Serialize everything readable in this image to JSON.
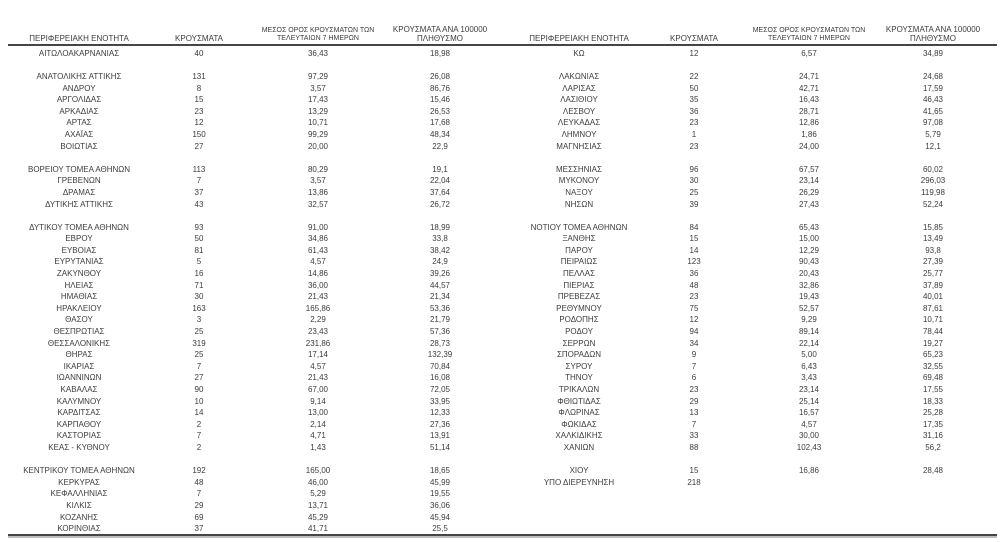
{
  "page": {
    "background": "#ffffff",
    "text_color": "#3d3d3d",
    "rule_color": "#454545",
    "rule_shadow_color": "#bdbdbd"
  },
  "headers": {
    "region": "ΠΕΡΙΦΕΡΕΙΑΚΗ ΕΝΟΤΗΤΑ",
    "cases": "ΚΡΟΥΣΜΑΤΑ",
    "avg7_line1": "ΜΕΣΟΣ ΟΡΟΣ ΚΡΟΥΣΜΑΤΩΝ ΤΩΝ",
    "avg7_line2": "ΤΕΛΕΥΤΑΙΩΝ 7 ΗΜΕΡΩΝ",
    "per100k_line1": "ΚΡΟΥΣΜΑΤΑ ΑΝΑ 100000",
    "per100k_line2": "ΠΛΗΘΥΣΜΟ"
  },
  "columns": [
    "region",
    "cases",
    "avg7",
    "per100k"
  ],
  "left_table": {
    "groups": [
      [
        [
          "ΑΙΤΩΛΟΑΚΑΡΝΑΝΙΑΣ",
          "40",
          "36,43",
          "18,98"
        ]
      ],
      [
        [
          "ΑΝΑΤΟΛΙΚΗΣ ΑΤΤΙΚΗΣ",
          "131",
          "97,29",
          "26,08"
        ],
        [
          "ΑΝΔΡΟΥ",
          "8",
          "3,57",
          "86,76"
        ],
        [
          "ΑΡΓΟΛΙΔΑΣ",
          "15",
          "17,43",
          "15,46"
        ],
        [
          "ΑΡΚΑΔΙΑΣ",
          "23",
          "13,29",
          "26,53"
        ],
        [
          "ΑΡΤΑΣ",
          "12",
          "10,71",
          "17,68"
        ],
        [
          "ΑΧΑΪΑΣ",
          "150",
          "99,29",
          "48,34"
        ],
        [
          "ΒΟΙΩΤΙΑΣ",
          "27",
          "20,00",
          "22,9"
        ]
      ],
      [
        [
          "ΒΟΡΕΙΟΥ ΤΟΜΕΑ ΑΘΗΝΩΝ",
          "113",
          "80,29",
          "19,1"
        ],
        [
          "ΓΡΕΒΕΝΩΝ",
          "7",
          "3,57",
          "22,04"
        ],
        [
          "ΔΡΑΜΑΣ",
          "37",
          "13,86",
          "37,64"
        ],
        [
          "ΔΥΤΙΚΗΣ ΑΤΤΙΚΗΣ",
          "43",
          "32,57",
          "26,72"
        ]
      ],
      [
        [
          "ΔΥΤΙΚΟΥ ΤΟΜΕΑ ΑΘΗΝΩΝ",
          "93",
          "91,00",
          "18,99"
        ],
        [
          "ΕΒΡΟΥ",
          "50",
          "34,86",
          "33,8"
        ],
        [
          "ΕΥΒΟΙΑΣ",
          "81",
          "61,43",
          "38,42"
        ],
        [
          "ΕΥΡΥΤΑΝΙΑΣ",
          "5",
          "4,57",
          "24,9"
        ],
        [
          "ΖΑΚΥΝΘΟΥ",
          "16",
          "14,86",
          "39,26"
        ],
        [
          "ΗΛΕΙΑΣ",
          "71",
          "36,00",
          "44,57"
        ],
        [
          "ΗΜΑΘΙΑΣ",
          "30",
          "21,43",
          "21,34"
        ],
        [
          "ΗΡΑΚΛΕΙΟΥ",
          "163",
          "165,86",
          "53,36"
        ],
        [
          "ΘΑΣΟΥ",
          "3",
          "2,29",
          "21,79"
        ],
        [
          "ΘΕΣΠΡΩΤΙΑΣ",
          "25",
          "23,43",
          "57,36"
        ],
        [
          "ΘΕΣΣΑΛΟΝΙΚΗΣ",
          "319",
          "231,86",
          "28,73"
        ],
        [
          "ΘΗΡΑΣ",
          "25",
          "17,14",
          "132,39"
        ],
        [
          "ΙΚΑΡΙΑΣ",
          "7",
          "4,57",
          "70,84"
        ],
        [
          "ΙΩΑΝΝΙΝΩΝ",
          "27",
          "21,43",
          "16,08"
        ],
        [
          "ΚΑΒΑΛΑΣ",
          "90",
          "67,00",
          "72,05"
        ],
        [
          "ΚΑΛΥΜΝΟΥ",
          "10",
          "9,14",
          "33,95"
        ],
        [
          "ΚΑΡΔΙΤΣΑΣ",
          "14",
          "13,00",
          "12,33"
        ],
        [
          "ΚΑΡΠΑΘΟΥ",
          "2",
          "2,14",
          "27,36"
        ],
        [
          "ΚΑΣΤΟΡΙΑΣ",
          "7",
          "4,71",
          "13,91"
        ],
        [
          "ΚΕΑΣ - ΚΥΘΝΟΥ",
          "2",
          "1,43",
          "51,14"
        ]
      ],
      [
        [
          "ΚΕΝΤΡΙΚΟΥ ΤΟΜΕΑ ΑΘΗΝΩΝ",
          "192",
          "165,00",
          "18,65"
        ],
        [
          "ΚΕΡΚΥΡΑΣ",
          "48",
          "46,00",
          "45,99"
        ],
        [
          "ΚΕΦΑΛΛΗΝΙΑΣ",
          "7",
          "5,29",
          "19,55"
        ],
        [
          "ΚΙΛΚΙΣ",
          "29",
          "13,71",
          "36,06"
        ],
        [
          "ΚΟΖΑΝΗΣ",
          "69",
          "45,29",
          "45,94"
        ],
        [
          "ΚΟΡΙΝΘΙΑΣ",
          "37",
          "41,71",
          "25,5"
        ]
      ]
    ]
  },
  "right_table": {
    "groups": [
      [
        [
          "ΚΩ",
          "12",
          "6,57",
          "34,89"
        ]
      ],
      [
        [
          "ΛΑΚΩΝΙΑΣ",
          "22",
          "24,71",
          "24,68"
        ],
        [
          "ΛΑΡΙΣΑΣ",
          "50",
          "42,71",
          "17,59"
        ],
        [
          "ΛΑΣΙΘΙΟΥ",
          "35",
          "16,43",
          "46,43"
        ],
        [
          "ΛΕΣΒΟΥ",
          "36",
          "28,71",
          "41,65"
        ],
        [
          "ΛΕΥΚΑΔΑΣ",
          "23",
          "12,86",
          "97,08"
        ],
        [
          "ΛΗΜΝΟΥ",
          "1",
          "1,86",
          "5,79"
        ],
        [
          "ΜΑΓΝΗΣΙΑΣ",
          "23",
          "24,00",
          "12,1"
        ]
      ],
      [
        [
          "ΜΕΣΣΗΝΙΑΣ",
          "96",
          "67,57",
          "60,02"
        ],
        [
          "ΜΥΚΟΝΟΥ",
          "30",
          "23,14",
          "296,03"
        ],
        [
          "ΝΑΞΟΥ",
          "25",
          "26,29",
          "119,98"
        ],
        [
          "ΝΗΣΩΝ",
          "39",
          "27,43",
          "52,24"
        ]
      ],
      [
        [
          "ΝΟΤΙΟΥ ΤΟΜΕΑ ΑΘΗΝΩΝ",
          "84",
          "65,43",
          "15,85"
        ],
        [
          "ΞΑΝΘΗΣ",
          "15",
          "15,00",
          "13,49"
        ],
        [
          "ΠΑΡΟΥ",
          "14",
          "12,29",
          "93,8"
        ],
        [
          "ΠΕΙΡΑΙΩΣ",
          "123",
          "90,43",
          "27,39"
        ],
        [
          "ΠΕΛΛΑΣ",
          "36",
          "20,43",
          "25,77"
        ],
        [
          "ΠΙΕΡΙΑΣ",
          "48",
          "32,86",
          "37,89"
        ],
        [
          "ΠΡΕΒΕΖΑΣ",
          "23",
          "19,43",
          "40,01"
        ],
        [
          "ΡΕΘΥΜΝΟΥ",
          "75",
          "52,57",
          "87,61"
        ],
        [
          "ΡΟΔΟΠΗΣ",
          "12",
          "9,29",
          "10,71"
        ],
        [
          "ΡΟΔΟΥ",
          "94",
          "89,14",
          "78,44"
        ],
        [
          "ΣΕΡΡΩΝ",
          "34",
          "22,14",
          "19,27"
        ],
        [
          "ΣΠΟΡΑΔΩΝ",
          "9",
          "5,00",
          "65,23"
        ],
        [
          "ΣΥΡΟΥ",
          "7",
          "6,43",
          "32,55"
        ],
        [
          "ΤΗΝΟΥ",
          "6",
          "3,43",
          "69,48"
        ],
        [
          "ΤΡΙΚΑΛΩΝ",
          "23",
          "23,14",
          "17,55"
        ],
        [
          "ΦΘΙΩΤΙΔΑΣ",
          "29",
          "25,14",
          "18,33"
        ],
        [
          "ΦΛΩΡΙΝΑΣ",
          "13",
          "16,57",
          "25,28"
        ],
        [
          "ΦΩΚΙΔΑΣ",
          "7",
          "4,57",
          "17,35"
        ],
        [
          "ΧΑΛΚΙΔΙΚΗΣ",
          "33",
          "30,00",
          "31,16"
        ],
        [
          "ΧΑΝΙΩΝ",
          "88",
          "102,43",
          "56,2"
        ]
      ],
      [
        [
          "ΧΙΟΥ",
          "15",
          "16,86",
          "28,48"
        ],
        [
          "ΥΠΟ ΔΙΕΡΕΥΝΗΣΗ",
          "218",
          "",
          ""
        ]
      ]
    ]
  }
}
